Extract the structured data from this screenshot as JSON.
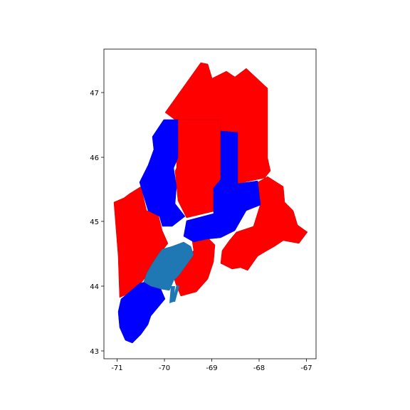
{
  "map": {
    "title": "",
    "xlabel": "",
    "ylabel": "",
    "x_ticks": [
      "-71",
      "-70",
      "-69",
      "-68",
      "-67"
    ],
    "y_ticks": [
      "43",
      "44",
      "45",
      "46",
      "47"
    ],
    "colors": {
      "red_regions": "#ff0000",
      "blue_regions": "#0000ff",
      "steelblue_regions": "#1f77b4",
      "frame": "#000000",
      "background": "#ffffff"
    }
  }
}
